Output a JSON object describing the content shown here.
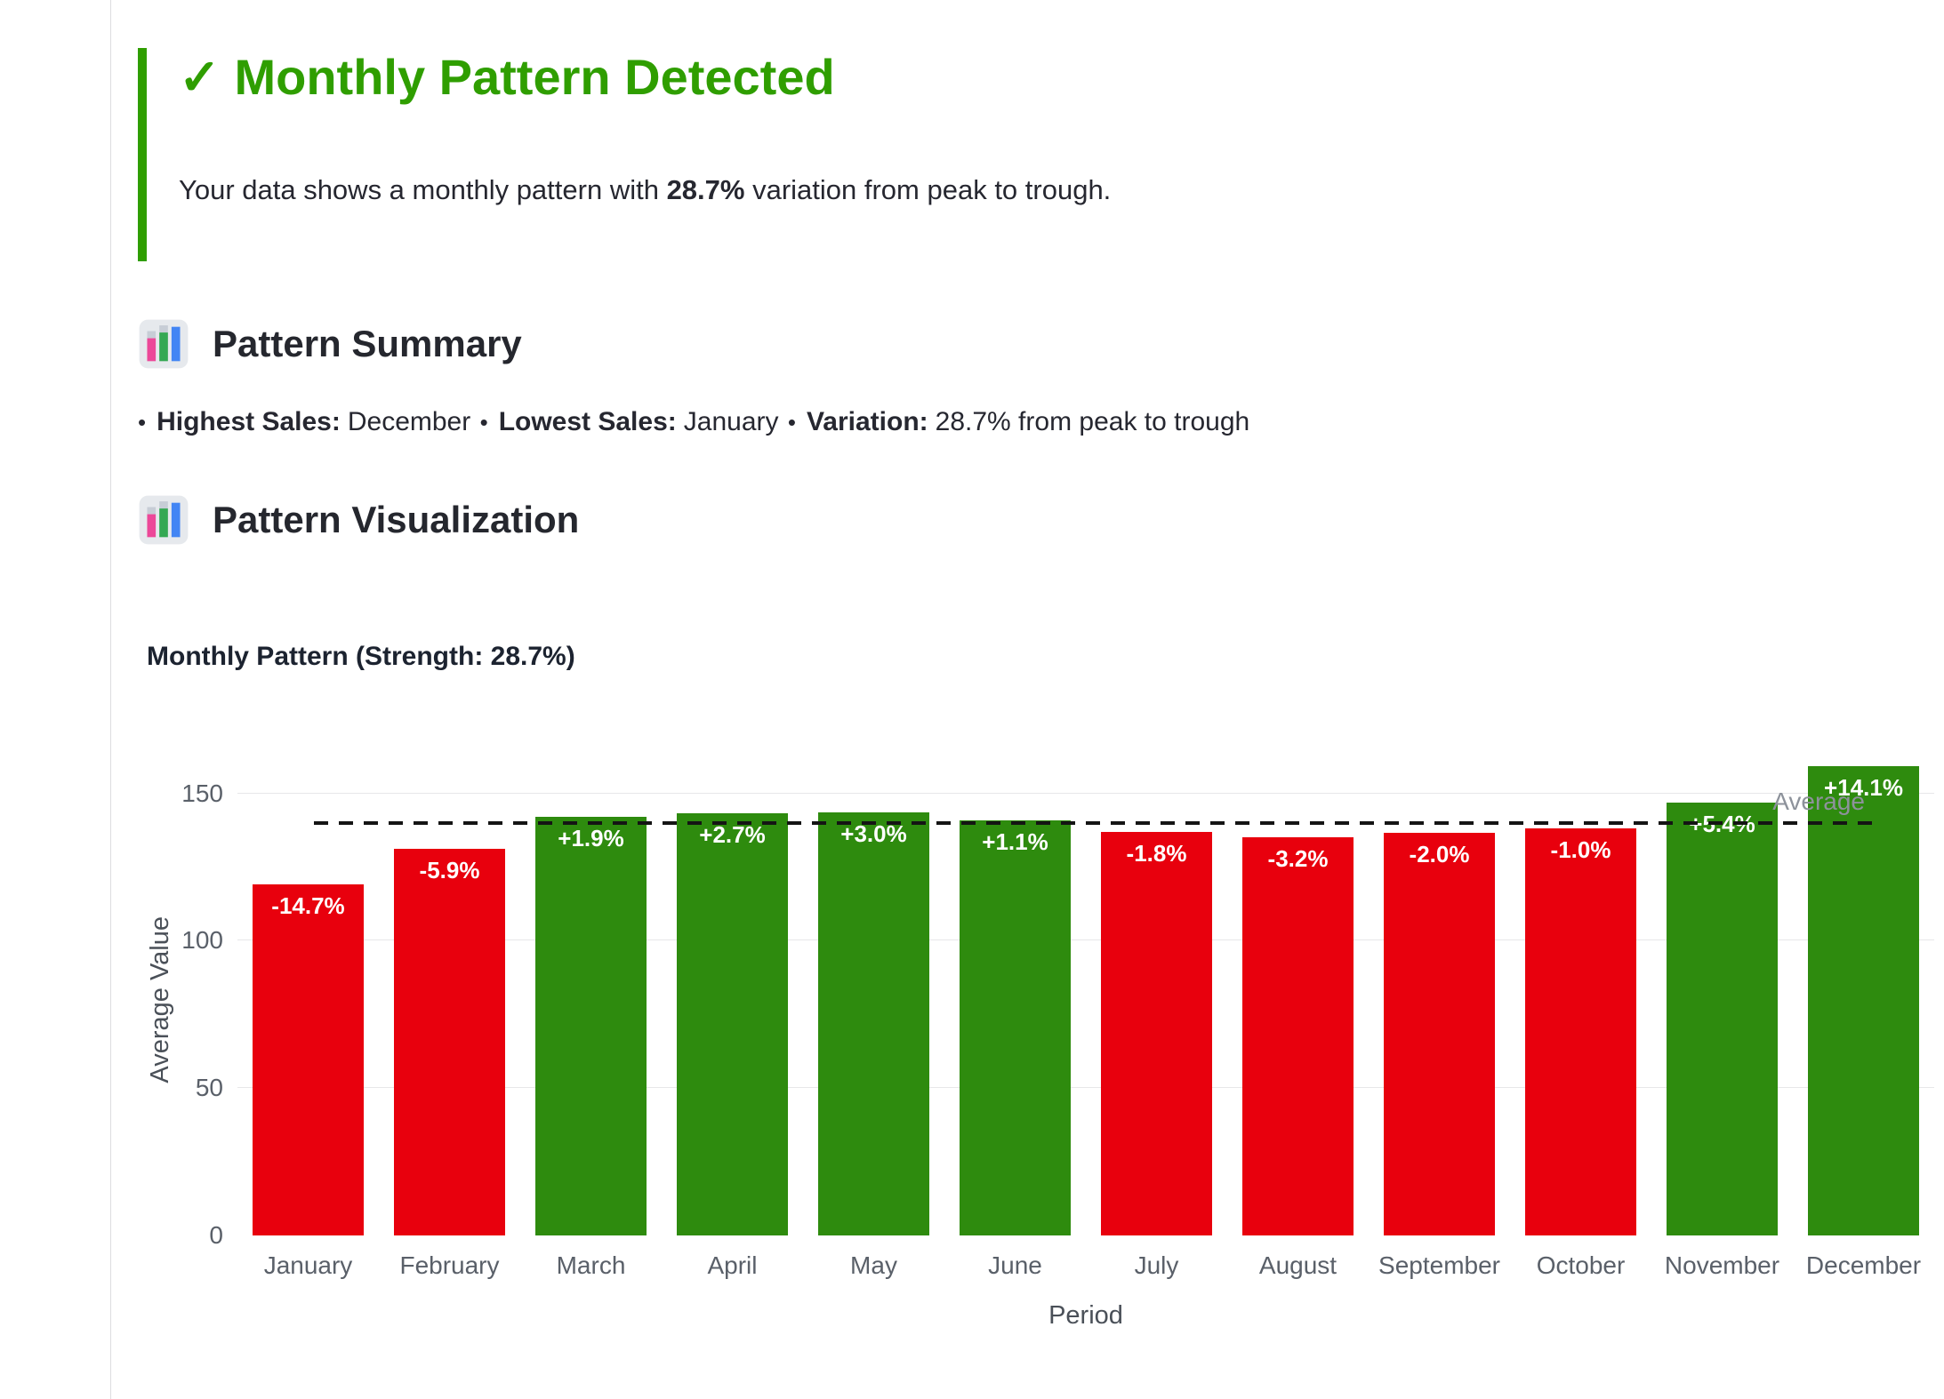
{
  "colors": {
    "accent_green": "#2f9e00",
    "bar_positive": "#2e8b0e",
    "bar_negative": "#e8000d",
    "average_line": "#141414"
  },
  "callout": {
    "title": "✓ Monthly Pattern Detected",
    "body_prefix": "Your data shows a monthly pattern with ",
    "body_bold": "28.7%",
    "body_suffix": " variation from peak to trough."
  },
  "sections": {
    "summary_title": "Pattern Summary",
    "visualization_title": "Pattern Visualization"
  },
  "summary": {
    "bullet": "•",
    "items": [
      {
        "label": "Highest Sales:",
        "value": "December"
      },
      {
        "label": "Lowest Sales:",
        "value": "January"
      },
      {
        "label": "Variation:",
        "value": "28.7% from peak to trough"
      }
    ]
  },
  "chart_data": {
    "type": "bar",
    "title": "Monthly Pattern (Strength: 28.7%)",
    "xlabel": "Period",
    "ylabel": "Average Value",
    "ylim": [
      0,
      160
    ],
    "yticks": [
      0,
      50,
      100,
      150
    ],
    "grid": true,
    "legend_position": "none",
    "categories": [
      "January",
      "February",
      "March",
      "April",
      "May",
      "June",
      "July",
      "August",
      "September",
      "October",
      "November",
      "December"
    ],
    "values": [
      119.0,
      131.3,
      142.2,
      143.3,
      143.7,
      141.0,
      137.0,
      135.0,
      136.7,
      138.1,
      147.0,
      159.2
    ],
    "bar_labels": [
      "-14.7%",
      "-5.9%",
      "+1.9%",
      "+2.7%",
      "+3.0%",
      "+1.1%",
      "-1.8%",
      "-3.2%",
      "-2.0%",
      "-1.0%",
      "+5.4%",
      "+14.1%"
    ],
    "bar_signs": [
      "negative",
      "negative",
      "positive",
      "positive",
      "positive",
      "positive",
      "negative",
      "negative",
      "negative",
      "negative",
      "positive",
      "positive"
    ],
    "average_value": 139.5,
    "average_label": "Average"
  }
}
